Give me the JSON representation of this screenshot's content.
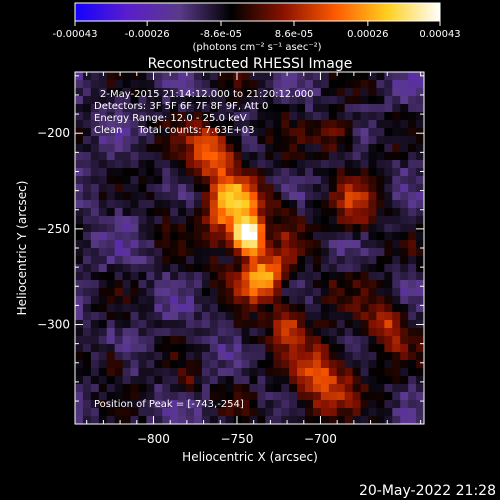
{
  "colorbar": {
    "tick_labels": [
      "-0.00043",
      "-0.00026",
      "-8.6e-05",
      "8.6e-05",
      "0.00026",
      "0.00043"
    ],
    "tick_values": [
      -0.00043,
      -0.00026,
      -8.6e-05,
      8.6e-05,
      0.00026,
      0.00043
    ],
    "range": [
      -0.00043,
      0.00043
    ],
    "unit_label": "(photons cm⁻² s⁻¹ asec⁻²)",
    "colormap": [
      "#1400ff",
      "#5a1ecc",
      "#5a3a8a",
      "#000000",
      "#8a1200",
      "#ff5a00",
      "#ffd020",
      "#ffffff"
    ]
  },
  "chart_data": {
    "type": "heatmap",
    "title": "Reconstructed RHESSI Image",
    "xlabel": "Heliocentric X (arcsec)",
    "ylabel": "Heliocentric Y (arcsec)",
    "xlim": [
      -847,
      -638
    ],
    "ylim": [
      -352,
      -168
    ],
    "xticks": [
      -800,
      -750,
      -700
    ],
    "yticks": [
      -200,
      -250,
      -300
    ],
    "xtick_labels": [
      "−800",
      "−750",
      "−700"
    ],
    "ytick_labels": [
      "−200",
      "−250",
      "−300"
    ],
    "peak": [
      -743,
      -254
    ],
    "annotations": [
      "2-May-2015 21:14:12.000 to 21:20:12.000",
      "Detectors: 3F 5F 6F 7F 8F 9F, Att 0",
      "Energy Range: 12.0 - 25.0 keV",
      "Clean     Total counts: 7.63E+03"
    ],
    "peak_label": "Position of Peak = [-743,-254]"
  },
  "footer": {
    "timestamp": "20-May-2022 21:28"
  }
}
